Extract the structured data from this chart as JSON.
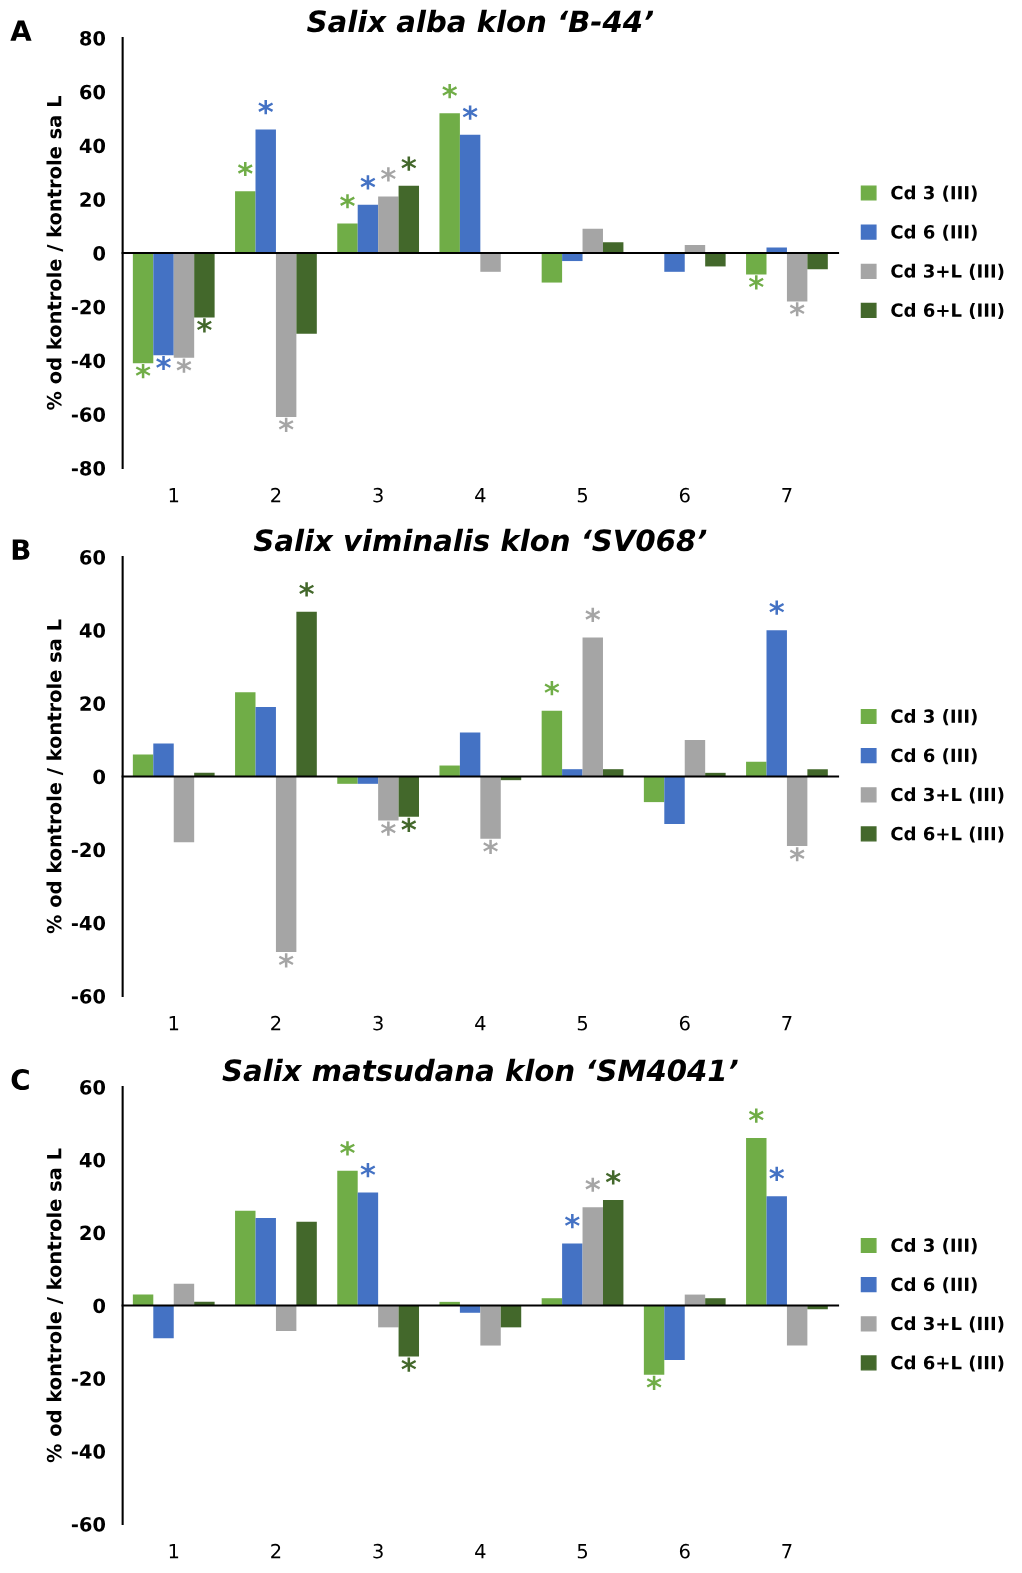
{
  "chart_data": [
    {
      "type": "bar",
      "title": "Salix alba klon ‘B-44’",
      "ylabel": "% od kontrole / kontrole sa L",
      "annotations": [
        "A"
      ],
      "categories": [
        "1",
        "2",
        "3",
        "4",
        "5",
        "6",
        "7"
      ],
      "ylim": [
        -80,
        80
      ],
      "yticks": [
        -80,
        -60,
        -40,
        -20,
        0,
        20,
        40,
        60,
        80
      ],
      "legend": "right",
      "series": [
        {
          "name": "Cd 3 (III)",
          "color": "#70ad47",
          "values": [
            -41,
            23,
            11,
            52,
            -11,
            0,
            -8
          ],
          "value_labels": [
            "*",
            "*",
            "*",
            "*",
            null,
            null,
            "*"
          ]
        },
        {
          "name": "Cd 6 (III)",
          "color": "#4472c4",
          "values": [
            -38,
            46,
            18,
            44,
            -3,
            -7,
            2
          ],
          "value_labels": [
            "*",
            "*",
            "*",
            "*",
            null,
            null,
            null
          ]
        },
        {
          "name": "Cd 3+L (III)",
          "color": "#a5a5a5",
          "values": [
            -39,
            -61,
            21,
            -7,
            9,
            3,
            -18
          ],
          "value_labels": [
            "*",
            "*",
            "*",
            null,
            null,
            null,
            "*"
          ]
        },
        {
          "name": "Cd 6+L (III)",
          "color": "#43682b",
          "values": [
            -24,
            -30,
            25,
            0,
            4,
            -5,
            -6
          ],
          "value_labels": [
            "*",
            null,
            "*",
            null,
            null,
            null,
            null
          ]
        }
      ]
    },
    {
      "type": "bar",
      "title": "Salix viminalis klon ‘SV068’",
      "ylabel": "% od kontrole / kontrole sa L",
      "annotations": [
        "B"
      ],
      "categories": [
        "1",
        "2",
        "3",
        "4",
        "5",
        "6",
        "7"
      ],
      "ylim": [
        -60,
        60
      ],
      "yticks": [
        -60,
        -40,
        -20,
        0,
        20,
        40,
        60
      ],
      "legend": "right",
      "series": [
        {
          "name": "Cd 3 (III)",
          "color": "#70ad47",
          "values": [
            6,
            23,
            -2,
            3,
            18,
            -7,
            4
          ],
          "value_labels": [
            null,
            null,
            null,
            null,
            "*",
            null,
            null
          ]
        },
        {
          "name": "Cd 6 (III)",
          "color": "#4472c4",
          "values": [
            9,
            19,
            -2,
            12,
            2,
            -13,
            40
          ],
          "value_labels": [
            null,
            null,
            null,
            null,
            null,
            null,
            "*"
          ]
        },
        {
          "name": "Cd 3+L (III)",
          "color": "#a5a5a5",
          "values": [
            -18,
            -48,
            -12,
            -17,
            38,
            10,
            -19
          ],
          "value_labels": [
            null,
            "*",
            "*",
            "*",
            "*",
            null,
            "*"
          ]
        },
        {
          "name": "Cd 6+L (III)",
          "color": "#43682b",
          "values": [
            1,
            45,
            -11,
            -1,
            2,
            1,
            2
          ],
          "value_labels": [
            null,
            "*",
            "*",
            null,
            null,
            null,
            null
          ]
        }
      ]
    },
    {
      "type": "bar",
      "title": "Salix matsudana klon ‘SM4041’",
      "ylabel": "% od kontrole / kontrole sa L",
      "annotations": [
        "C"
      ],
      "categories": [
        "1",
        "2",
        "3",
        "4",
        "5",
        "6",
        "7"
      ],
      "ylim": [
        -60,
        60
      ],
      "yticks": [
        -60,
        -40,
        -20,
        0,
        20,
        40,
        60
      ],
      "legend": "right",
      "series": [
        {
          "name": "Cd 3 (III)",
          "color": "#70ad47",
          "values": [
            3,
            26,
            37,
            1,
            2,
            -19,
            46
          ],
          "value_labels": [
            null,
            null,
            "*",
            null,
            null,
            "*",
            "*"
          ]
        },
        {
          "name": "Cd 6 (III)",
          "color": "#4472c4",
          "values": [
            -9,
            24,
            31,
            -2,
            17,
            -15,
            30
          ],
          "value_labels": [
            null,
            null,
            "*",
            null,
            "*",
            null,
            "*"
          ]
        },
        {
          "name": "Cd 3+L (III)",
          "color": "#a5a5a5",
          "values": [
            6,
            -7,
            -6,
            -11,
            27,
            3,
            -11
          ],
          "value_labels": [
            null,
            null,
            null,
            null,
            "*",
            null,
            null
          ]
        },
        {
          "name": "Cd 6+L (III)",
          "color": "#43682b",
          "values": [
            1,
            23,
            -14,
            -6,
            29,
            2,
            -1
          ],
          "value_labels": [
            null,
            null,
            "*",
            null,
            "*",
            null,
            null
          ]
        }
      ]
    }
  ]
}
